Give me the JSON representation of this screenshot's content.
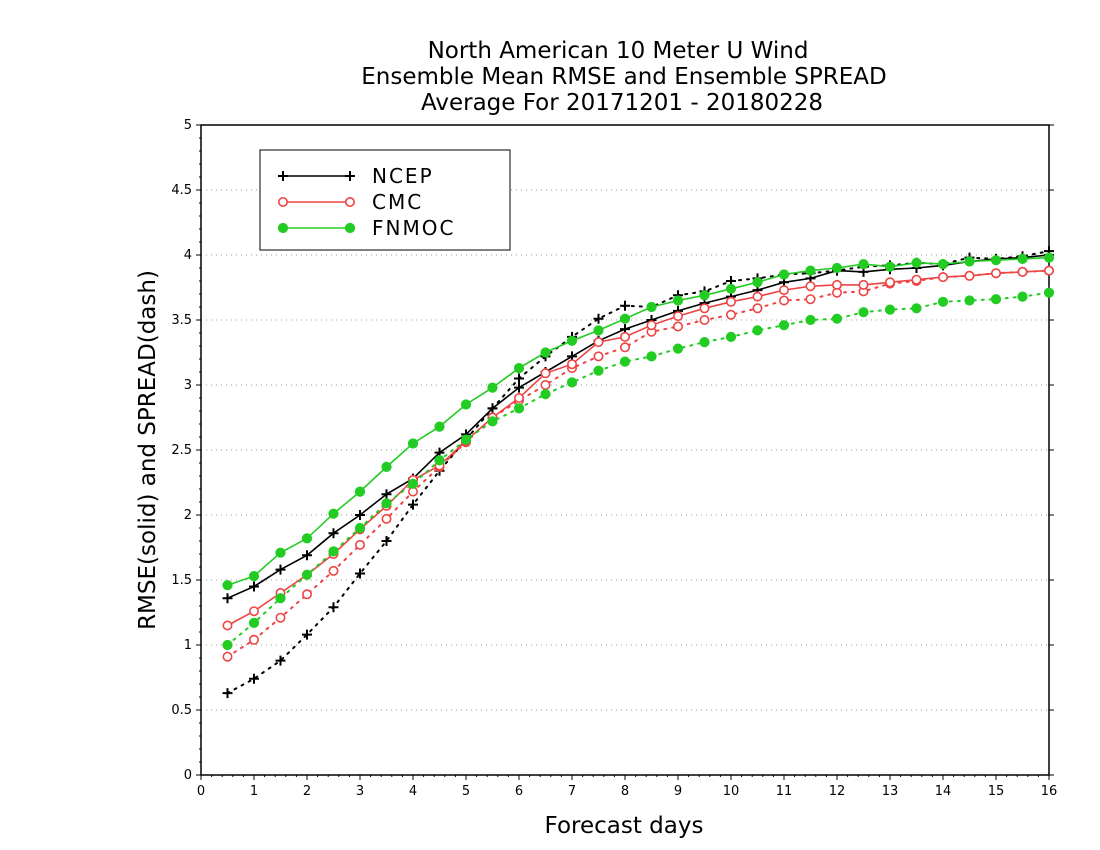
{
  "chart_data": {
    "type": "line",
    "title_lines": [
      "North American 10 Meter U Wind",
      "Ensemble Mean RMSE and Ensemble SPREAD",
      "Average For 20171201 - 20180228"
    ],
    "xlabel": "Forecast days",
    "ylabel": "RMSE(solid) and SPREAD(dash)",
    "xlim": [
      0,
      16
    ],
    "ylim": [
      0,
      5
    ],
    "xticks": [
      "0",
      "1",
      "2",
      "3",
      "4",
      "5",
      "6",
      "7",
      "8",
      "9",
      "10",
      "11",
      "12",
      "13",
      "14",
      "15",
      "16"
    ],
    "yticks": [
      "0",
      "0.5",
      "1",
      "1.5",
      "2",
      "2.5",
      "3",
      "3.5",
      "4",
      "4.5",
      "5"
    ],
    "grid": true,
    "legend_position": "top-left",
    "x": [
      0.5,
      1,
      1.5,
      2,
      2.5,
      3,
      3.5,
      4,
      4.5,
      5,
      5.5,
      6,
      6.5,
      7,
      7.5,
      8,
      8.5,
      9,
      9.5,
      10,
      10.5,
      11,
      11.5,
      12,
      12.5,
      13,
      13.5,
      14,
      14.5,
      15,
      15.5,
      16
    ],
    "series": [
      {
        "name": "NCEP",
        "color": "#000000",
        "marker": "plus",
        "rmse": [
          1.36,
          1.45,
          1.58,
          1.69,
          1.86,
          2.0,
          2.16,
          2.28,
          2.48,
          2.62,
          2.82,
          2.98,
          3.1,
          3.22,
          3.34,
          3.43,
          3.5,
          3.57,
          3.63,
          3.68,
          3.73,
          3.79,
          3.82,
          3.88,
          3.87,
          3.89,
          3.9,
          3.92,
          3.95,
          3.97,
          3.98,
          4.0
        ],
        "spread": [
          0.63,
          0.74,
          0.88,
          1.08,
          1.29,
          1.55,
          1.8,
          2.08,
          2.34,
          2.58,
          2.82,
          3.05,
          3.22,
          3.37,
          3.51,
          3.61,
          3.6,
          3.69,
          3.72,
          3.8,
          3.82,
          3.85,
          3.86,
          3.88,
          3.91,
          3.92,
          3.94,
          3.93,
          3.98,
          3.97,
          3.99,
          4.03
        ]
      },
      {
        "name": "CMC",
        "color": "#ee4444",
        "marker": "circle-open",
        "rmse": [
          1.15,
          1.26,
          1.4,
          1.54,
          1.7,
          1.89,
          2.07,
          2.27,
          2.38,
          2.57,
          2.75,
          2.9,
          3.09,
          3.16,
          3.33,
          3.37,
          3.46,
          3.53,
          3.59,
          3.64,
          3.68,
          3.73,
          3.76,
          3.77,
          3.77,
          3.79,
          3.81,
          3.83,
          3.84,
          3.86,
          3.87,
          3.88
        ],
        "spread": [
          0.91,
          1.04,
          1.21,
          1.39,
          1.57,
          1.77,
          1.97,
          2.18,
          2.37,
          2.56,
          2.75,
          2.88,
          3.0,
          3.13,
          3.22,
          3.29,
          3.41,
          3.45,
          3.5,
          3.54,
          3.59,
          3.65,
          3.66,
          3.71,
          3.72,
          3.78,
          3.8,
          3.83,
          3.84,
          3.86,
          3.87,
          3.88
        ]
      },
      {
        "name": "FNMOC",
        "color": "#22cc22",
        "marker": "circle-filled",
        "rmse": [
          1.46,
          1.53,
          1.71,
          1.82,
          2.01,
          2.18,
          2.37,
          2.55,
          2.68,
          2.85,
          2.98,
          3.13,
          3.25,
          3.34,
          3.42,
          3.51,
          3.6,
          3.65,
          3.69,
          3.74,
          3.79,
          3.85,
          3.88,
          3.9,
          3.93,
          3.91,
          3.94,
          3.93,
          3.95,
          3.96,
          3.97,
          3.98
        ],
        "spread": [
          1.0,
          1.17,
          1.36,
          1.54,
          1.72,
          1.9,
          2.09,
          2.24,
          2.42,
          2.58,
          2.72,
          2.82,
          2.93,
          3.02,
          3.11,
          3.18,
          3.22,
          3.28,
          3.33,
          3.37,
          3.42,
          3.46,
          3.5,
          3.51,
          3.56,
          3.58,
          3.59,
          3.64,
          3.65,
          3.66,
          3.68,
          3.71
        ]
      }
    ]
  }
}
